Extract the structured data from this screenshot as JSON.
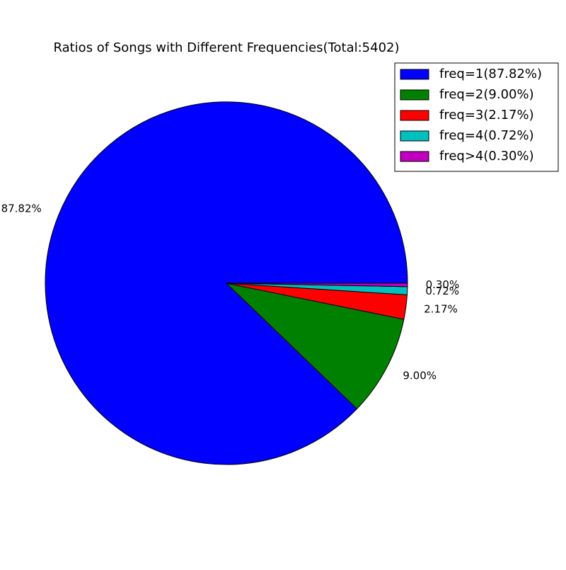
{
  "chart_data": {
    "type": "pie",
    "title": "Ratios of Songs with Different Frequencies(Total:5402)",
    "categories": [
      "freq=1",
      "freq=2",
      "freq=3",
      "freq=4",
      "freq>4"
    ],
    "values": [
      87.82,
      9.0,
      2.17,
      0.72,
      0.3
    ],
    "labels": [
      "87.82%",
      "9.00%",
      "2.17%",
      "0.72%",
      "0.30%"
    ],
    "legend": [
      "freq=1(87.82%)",
      "freq=2(9.00%)",
      "freq=3(2.17%)",
      "freq=4(0.72%)",
      "freq>4(0.30%)"
    ],
    "colors": [
      "#0000ff",
      "#008000",
      "#ff0000",
      "#00bfbf",
      "#bf00bf"
    ],
    "start_angle_deg": 0,
    "direction": "counterclockwise",
    "legend_position": "top-right"
  }
}
